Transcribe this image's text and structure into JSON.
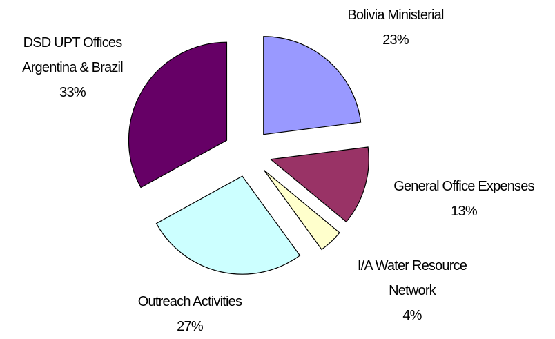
{
  "chart_data": {
    "type": "pie",
    "categories": [
      "Bolivia Ministerial",
      "General Office Expenses",
      "I/A Water Resource Network",
      "Outreach Activities",
      "DSD UPT Offices Argentina & Brazil"
    ],
    "values": [
      23,
      13,
      4,
      27,
      33
    ],
    "value_labels": [
      "23%",
      "13%",
      "4%",
      "27%",
      "33%"
    ],
    "colors": [
      "#9999ff",
      "#993366",
      "#ffffcc",
      "#ccffff",
      "#660066"
    ],
    "exploded": true
  }
}
